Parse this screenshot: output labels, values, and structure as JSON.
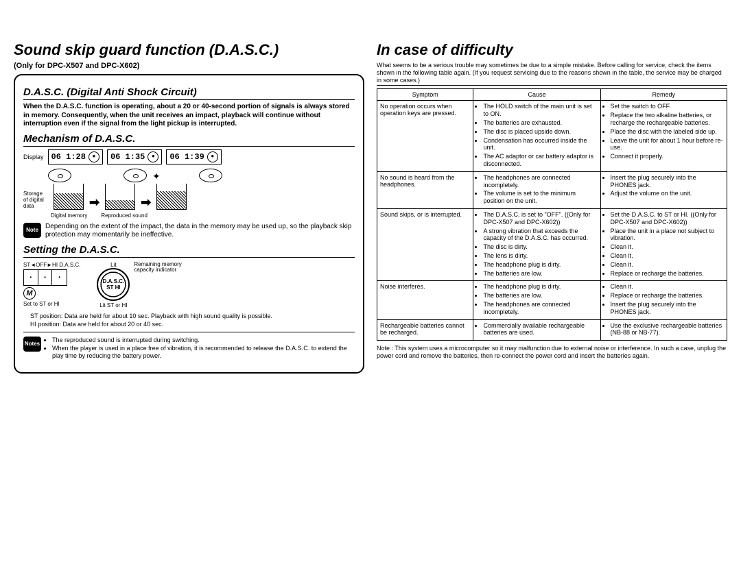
{
  "left": {
    "title": "Sound skip guard function (D.A.S.C.)",
    "only_for": "(Only for DPC-X507 and DPC-X602)",
    "dasc_heading": "D.A.S.C. (Digital Anti Shock Circuit)",
    "dasc_body": "When the D.A.S.C. function is operating, about a 20 or 40-second portion of signals is always stored in memory. Consequently, when the unit receives an impact, playback will continue without interruption even if the signal from the light pickup is interrupted.",
    "mech_heading": "Mechanism of D.A.S.C.",
    "display_label": "Display",
    "lcd1": "06  1:28",
    "lcd2": "06  1:35",
    "lcd3": "06  1:39",
    "storage_label": "Storage of digital data",
    "mem1": "Digital memory",
    "mem2": "Reproduced sound",
    "note1": "Depending on the extent of the impact, the data in the memory may be used up, so the playback skip protection may momentarily be ineffective.",
    "setting_heading": "Setting the D.A.S.C.",
    "switch_top": "ST◄OFF►HI  D.A.S.C.",
    "set_label": "Set to ST or HI",
    "lit": "Lit",
    "lit_sthi": "Lit ST or HI",
    "remaining": "Remaining memory capacity indicator",
    "badge_top": "D.A.S.C.",
    "badge_bot": "ST  HI",
    "pos_st": "ST position: Data are held for about 10 sec. Playback with high sound quality is possible.",
    "pos_hi": "HI position: Data are held for about 20 or 40 sec.",
    "notes2a": "The reproduced sound is interrupted during switching.",
    "notes2b": "When the player is used in a place free of vibration, it is recommended to release the D.A.S.C. to extend the play time by reducing the battery power."
  },
  "right": {
    "title": "In case of difficulty",
    "intro": "What seems to be a serious trouble may sometimes be due to a simple mistake. Before calling for service, check the items shown in the following table again. (If you request servicing due to the reasons shown in the table, the service may be charged in some cases.)",
    "headers": {
      "symptom": "Symptom",
      "cause": "Cause",
      "remedy": "Remedy"
    },
    "rows": [
      {
        "symptom": "No operation occurs when operation keys are pressed.",
        "causes": [
          "The HOLD switch of the main unit is set to ON.",
          "The batteries are exhausted.",
          "The disc is placed upside down.",
          "Condensation has occurred inside the unit.",
          "The AC adaptor or car battery adaptor is disconnected."
        ],
        "remedies": [
          "Set the switch to OFF.",
          "Replace the two alkaline batteries, or recharge the rechargeable batteries.",
          "Place the disc with the labeled side up.",
          "Leave the unit for about 1 hour before re-use.",
          "Connect it properly."
        ]
      },
      {
        "symptom": "No sound is heard from the headphones.",
        "causes": [
          "The headphones are connected incompletely.",
          "The volume is set to the minimum position on the unit."
        ],
        "remedies": [
          "Insert the plug securely into the PHONES jack.",
          "Adjust the volume on the unit."
        ]
      },
      {
        "symptom": "Sound skips, or is interrupted.",
        "causes": [
          "The D.A.S.C. is set to \"OFF\". ((Only for DPC-X507 and DPC-X602))",
          "A strong vibration that exceeds the capacity of the D.A.S.C. has occurred.",
          "The disc is dirty.",
          "The lens is dirty.",
          "The headphone plug is dirty.",
          "The batteries are low."
        ],
        "remedies": [
          "Set the D.A.S.C. to ST or HI. ((Only for DPC-X507 and DPC-X602))",
          "Place the unit in a place not subject to vibration.",
          "Clean it.",
          "Clean it.",
          "Clean it.",
          "Replace or recharge the batteries."
        ]
      },
      {
        "symptom": "Noise interferes.",
        "causes": [
          "The headphone plug is dirty.",
          "The batteries are low.",
          "The headphones are connected incompletely."
        ],
        "remedies": [
          "Clean it.",
          "Replace or recharge the batteries.",
          "Insert the plug securely into the PHONES jack."
        ]
      },
      {
        "symptom": "Rechargeable batteries cannot be recharged.",
        "causes": [
          "Commercially available rechargeable batteries are used."
        ],
        "remedies": [
          "Use the exclusive rechargeable batteries (NB-88 or NB-77)."
        ]
      }
    ],
    "note": "Note : This system uses a microcomputer so it may malfunction due to external noise or interference. In such a case, unplug the power cord and remove the batteries, then re-connect the power cord and insert the batteries again."
  }
}
